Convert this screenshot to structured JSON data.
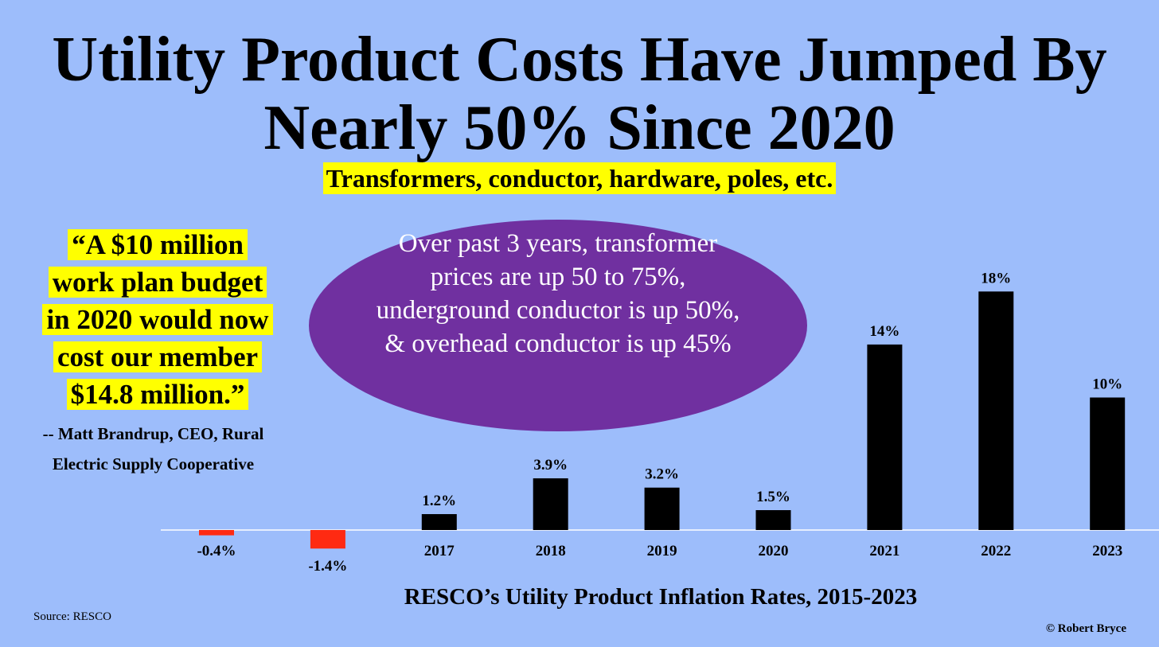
{
  "header": {
    "title": "Utility Product Costs Have Jumped By Nearly 50% Since 2020",
    "subtitle": "Transformers, conductor, hardware, poles, etc."
  },
  "quote": {
    "lines": [
      "“A $10 million",
      "work plan budget",
      "in 2020 would now",
      "cost our member",
      "$14.8 million.”"
    ],
    "attribution_lines": [
      "-- Matt Brandrup, CEO, Rural",
      "Electric Supply Cooperative"
    ]
  },
  "callout": {
    "text": "Over past 3 years, transformer prices are up 50 to 75%, underground conductor is up 50%, & overhead conductor is up 45%"
  },
  "footer": {
    "source": "Source: RESCO",
    "copyright": "© Robert Bryce"
  },
  "colors": {
    "background": "#9dbdfb",
    "highlight": "#ffff00",
    "callout": "#7030a0",
    "positive_bar": "#000000",
    "negative_bar": "#ff2a12"
  },
  "chart_data": {
    "type": "bar",
    "categories": [
      "",
      "",
      "2017",
      "2018",
      "2019",
      "2020",
      "2021",
      "2022",
      "2023"
    ],
    "values": [
      -0.4,
      -1.4,
      1.2,
      3.9,
      3.2,
      1.5,
      14,
      18,
      10
    ],
    "data_labels": [
      "-0.4%",
      "-1.4%",
      "1.2%",
      "3.9%",
      "3.2%",
      "1.5%",
      "14%",
      "18%",
      "10%"
    ],
    "xlabel": "RESCO’s Utility Product Inflation Rates, 2015-2023",
    "ylabel": "",
    "ylim": [
      -2,
      18
    ],
    "grid": false,
    "legend": "none"
  }
}
